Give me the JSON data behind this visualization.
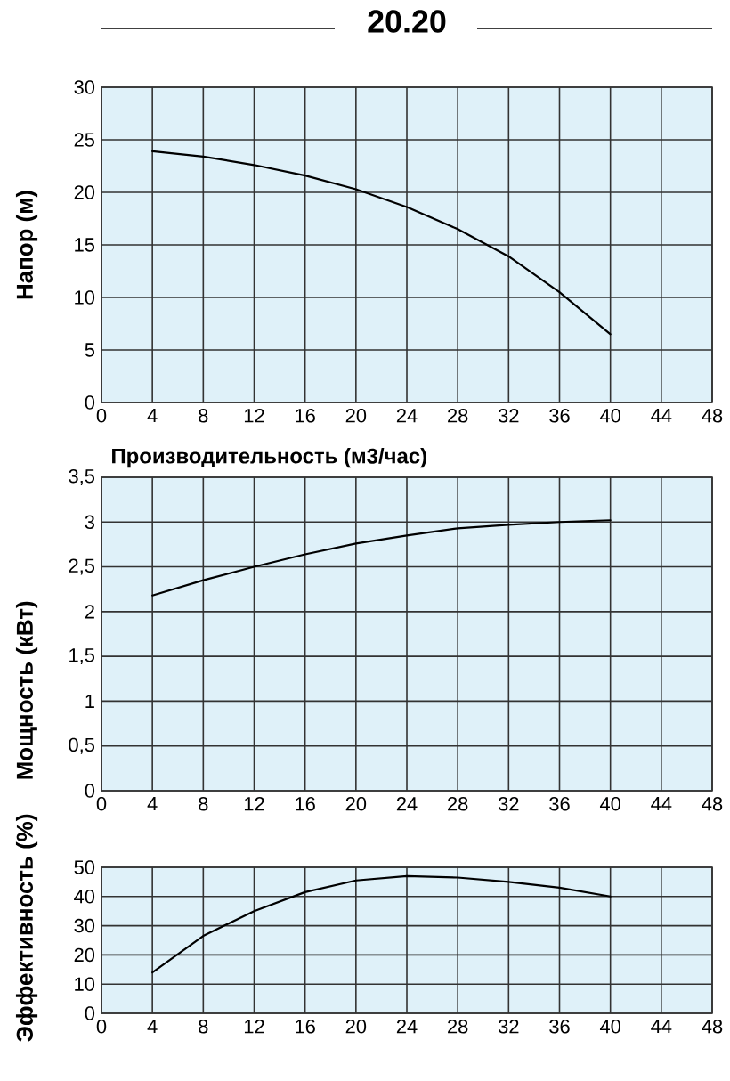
{
  "chart_data": [
    {
      "type": "line",
      "title": "20.20",
      "xlabel": "Производительность (м3/час)",
      "ylabel": "Напор (м)",
      "x": [
        4,
        8,
        12,
        16,
        20,
        24,
        28,
        32,
        36,
        40
      ],
      "values": [
        23.9,
        23.4,
        22.6,
        21.6,
        20.3,
        18.6,
        16.5,
        13.9,
        10.5,
        6.5
      ],
      "color": "#000000",
      "xlim": [
        0,
        48
      ],
      "xticks": [
        0,
        4,
        8,
        12,
        16,
        20,
        24,
        28,
        32,
        36,
        40,
        44,
        48
      ],
      "ylim": [
        0,
        30
      ],
      "yticks": [
        0,
        5,
        10,
        15,
        20,
        25,
        30
      ],
      "grid": true
    },
    {
      "type": "line",
      "ylabel": "Мощность (кВт)",
      "x": [
        4,
        8,
        12,
        16,
        20,
        24,
        28,
        32,
        36,
        40
      ],
      "values": [
        2.18,
        2.35,
        2.5,
        2.64,
        2.76,
        2.85,
        2.93,
        2.97,
        3.0,
        3.02
      ],
      "color": "#000000",
      "xlim": [
        0,
        48
      ],
      "xticks": [
        0,
        4,
        8,
        12,
        16,
        20,
        24,
        28,
        32,
        36,
        40,
        44,
        48
      ],
      "ylim": [
        0,
        3.5
      ],
      "yticks": [
        0,
        {
          "value": 0.5,
          "label": "0,5"
        },
        1,
        {
          "value": 1.5,
          "label": "1,5"
        },
        2,
        {
          "value": 2.5,
          "label": "2,5"
        },
        3,
        {
          "value": 3.5,
          "label": "3,5"
        }
      ],
      "grid": true
    },
    {
      "type": "line",
      "ylabel": "Эффективность (%)",
      "x": [
        4,
        8,
        12,
        16,
        20,
        24,
        28,
        32,
        36,
        40
      ],
      "values": [
        14,
        26.5,
        35,
        41.5,
        45.5,
        47,
        46.5,
        45,
        43,
        40
      ],
      "color": "#000000",
      "xlim": [
        0,
        48
      ],
      "xticks": [
        0,
        4,
        8,
        12,
        16,
        20,
        24,
        28,
        32,
        36,
        40,
        44,
        48
      ],
      "ylim": [
        0,
        50
      ],
      "yticks": [
        0,
        10,
        20,
        30,
        40,
        50
      ],
      "grid": true
    }
  ]
}
